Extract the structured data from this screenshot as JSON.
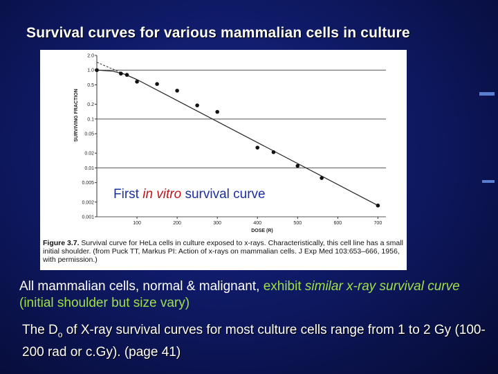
{
  "slide": {
    "title": "Survival curves for various mammalian cells in culture",
    "overlay": {
      "pre": "First ",
      "em": "in vitro",
      "post": " survival curve"
    },
    "bullet1": {
      "pre": "All mammalian cells, normal & malignant, ",
      "hl1": "exhibit ",
      "em": "similar x-ray survival curve",
      "post": " (initial shoulder but size vary)"
    },
    "bullet2": {
      "pre": "The D",
      "sub": "o",
      "post": " of X-ray survival curves for most culture cells range from 1 to 2 Gy (100-200 rad or c.Gy). (page 41)"
    },
    "caption": {
      "bold": "Figure 3.7.",
      "text": " Survival curve for HeLa cells in culture exposed to x-rays. Characteristically, this cell line has a small initial shoulder. (from Puck TT, Markus PI: Action of x-rays on mammalian cells. J Exp Med 103:653–666, 1956, with permission.)"
    }
  },
  "chart_data": {
    "type": "scatter",
    "title": "",
    "xlabel": "DOSE (R)",
    "ylabel": "SURVIVING FRACTION",
    "y_scale": "log",
    "xlim": [
      0,
      720
    ],
    "ylim": [
      0.001,
      2.0
    ],
    "x_ticks": [
      100,
      200,
      300,
      400,
      500,
      600,
      700
    ],
    "y_ticks": [
      {
        "v": 2.0,
        "label": "2.0"
      },
      {
        "v": 1.0,
        "label": "1.0"
      },
      {
        "v": 0.5,
        "label": "0.5"
      },
      {
        "v": 0.2,
        "label": "0.2"
      },
      {
        "v": 0.1,
        "label": "0.1"
      },
      {
        "v": 0.05,
        "label": "0.05"
      },
      {
        "v": 0.02,
        "label": "0.02"
      },
      {
        "v": 0.01,
        "label": "0.01"
      },
      {
        "v": 0.005,
        "label": "0.005"
      },
      {
        "v": 0.002,
        "label": "0.002"
      },
      {
        "v": 0.001,
        "label": "0.001"
      }
    ],
    "gridlines_y": [
      1.0,
      0.1,
      0.01,
      0.001
    ],
    "points": [
      {
        "x": 0,
        "y": 1.0
      },
      {
        "x": 60,
        "y": 0.85
      },
      {
        "x": 75,
        "y": 0.8
      },
      {
        "x": 100,
        "y": 0.58
      },
      {
        "x": 150,
        "y": 0.52
      },
      {
        "x": 200,
        "y": 0.38
      },
      {
        "x": 250,
        "y": 0.19
      },
      {
        "x": 300,
        "y": 0.14
      },
      {
        "x": 400,
        "y": 0.026
      },
      {
        "x": 440,
        "y": 0.021
      },
      {
        "x": 500,
        "y": 0.011
      },
      {
        "x": 560,
        "y": 0.0062
      },
      {
        "x": 700,
        "y": 0.0017
      }
    ],
    "fit_curve": [
      {
        "x": 0,
        "y": 1.0
      },
      {
        "x": 40,
        "y": 0.95
      },
      {
        "x": 70,
        "y": 0.82
      },
      {
        "x": 100,
        "y": 0.64
      },
      {
        "x": 700,
        "y": 0.0017
      }
    ],
    "extrapolation": [
      {
        "x": 0,
        "y": 1.45
      },
      {
        "x": 100,
        "y": 0.64
      }
    ]
  }
}
